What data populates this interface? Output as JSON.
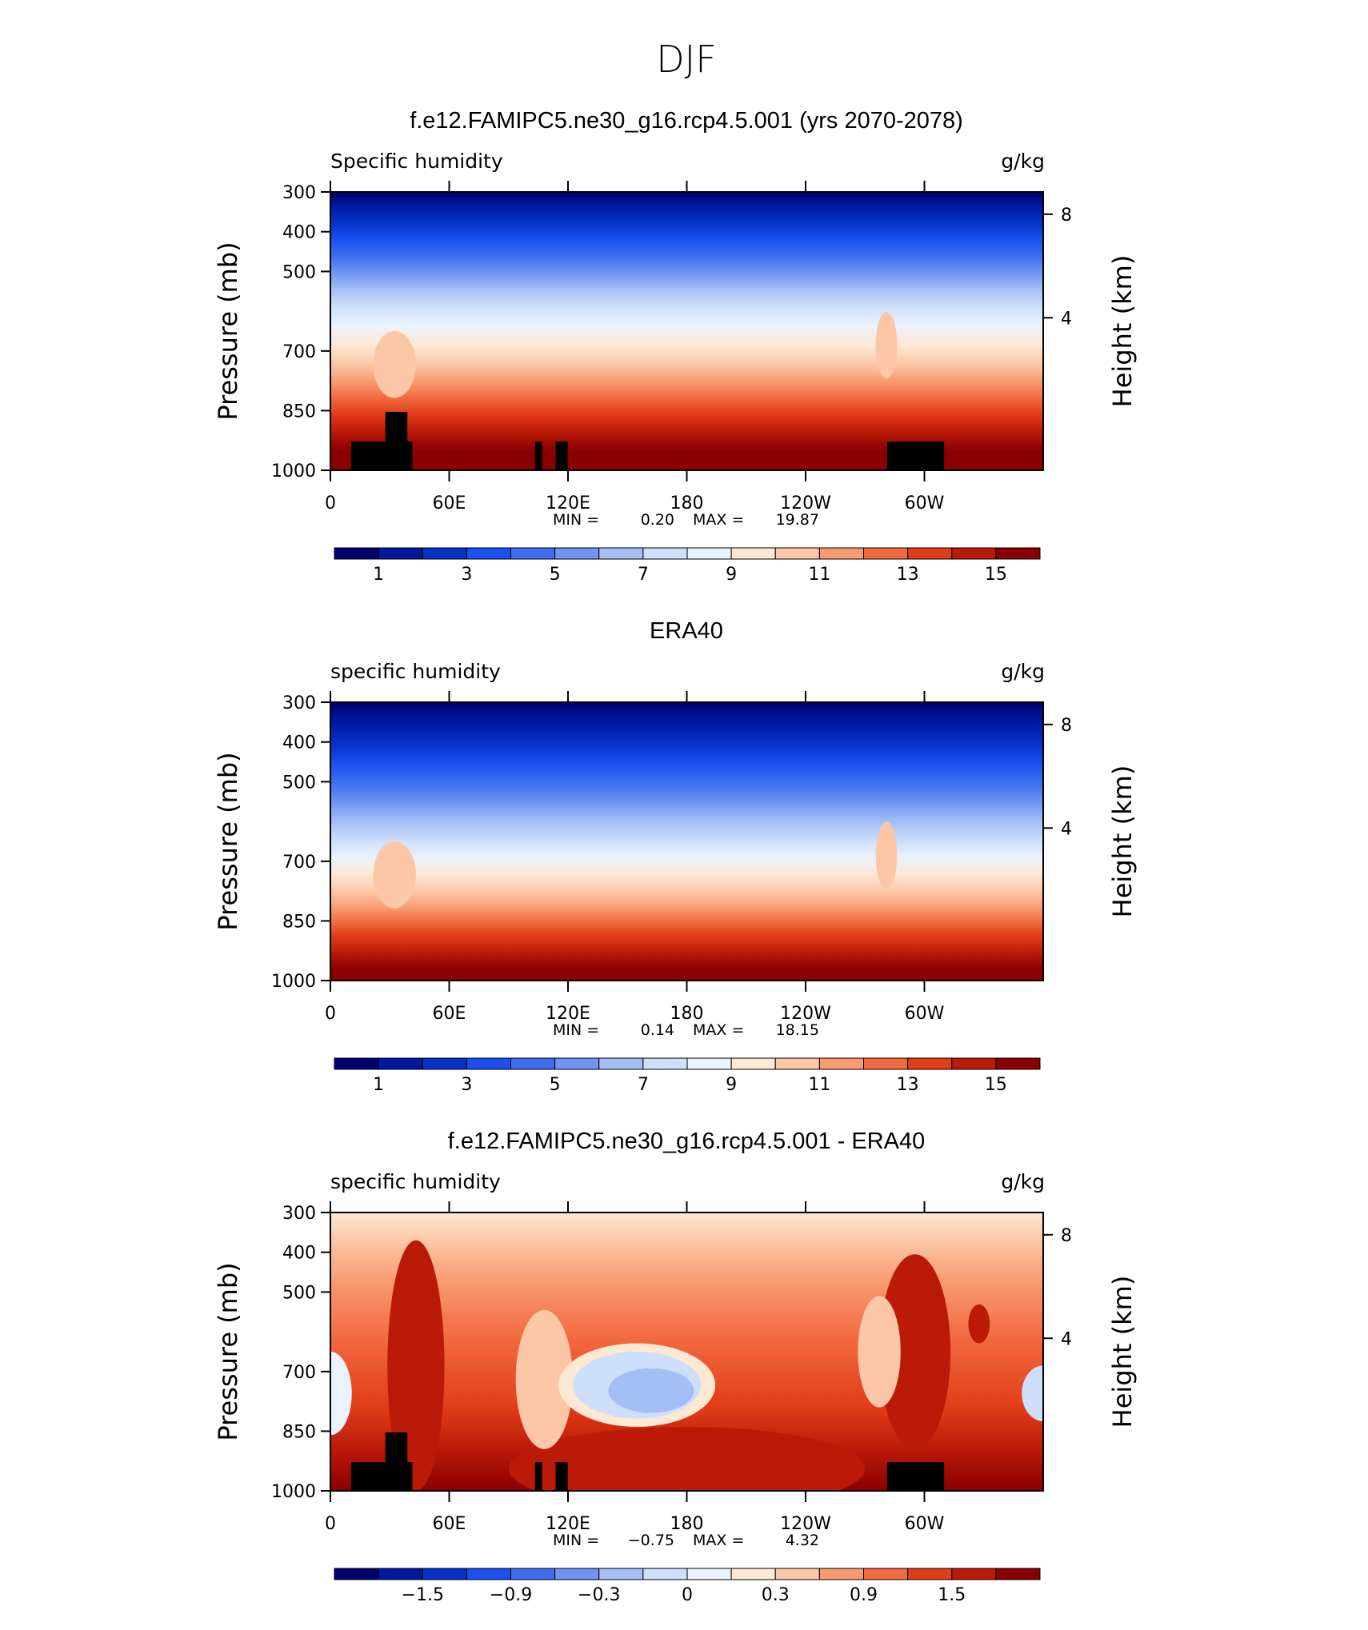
{
  "title": "DJF",
  "chart_data": [
    {
      "type": "contour",
      "title": "f.e12.FAMIPC5.ne30_g16.rcp4.5.001 (yrs 2070-2078)",
      "variable": "Specific humidity",
      "units": "g/kg",
      "ylabel": "Pressure (mb)",
      "y2label": "Height (km)",
      "xlim": [
        0,
        360
      ],
      "xticks": [
        0,
        {
          "value": 60,
          "label": "60E"
        },
        {
          "value": 120,
          "label": "120E"
        },
        180,
        {
          "value": 240,
          "label": "120W"
        },
        {
          "value": 300,
          "label": "60W"
        }
      ],
      "ylim": [
        300,
        1000
      ],
      "y_inverted": true,
      "yticks": [
        300,
        400,
        500,
        700,
        850,
        1000
      ],
      "y2ticks": [
        8,
        4
      ],
      "min_text": "MIN =",
      "min": {
        "value": 0.2,
        "label": "0.20"
      },
      "max_text": "MAX =",
      "max": {
        "value": 19.87,
        "label": "19.87"
      },
      "colors": [
        "#00006e",
        "#0018a0",
        "#0632c8",
        "#1a4ff0",
        "#3d6ef2",
        "#6e95f2",
        "#a3bff6",
        "#cddffb",
        "#eaf3fd",
        "#fde8d4",
        "#fcc7a6",
        "#f99a70",
        "#f26a40",
        "#e23c18",
        "#bb1a08",
        "#8a0000"
      ],
      "colorbar_labels": [
        "1",
        null,
        "3",
        null,
        "5",
        null,
        "7",
        null,
        "9",
        null,
        "11",
        null,
        "13",
        null,
        "15"
      ]
    },
    {
      "type": "contour",
      "title": "ERA40",
      "variable": "specific humidity",
      "units": "g/kg",
      "ylabel": "Pressure (mb)",
      "y2label": "Height (km)",
      "xlim": [
        0,
        360
      ],
      "xticks": [
        0,
        {
          "value": 60,
          "label": "60E"
        },
        {
          "value": 120,
          "label": "120E"
        },
        180,
        {
          "value": 240,
          "label": "120W"
        },
        {
          "value": 300,
          "label": "60W"
        }
      ],
      "ylim": [
        300,
        1000
      ],
      "y_inverted": true,
      "yticks": [
        300,
        400,
        500,
        700,
        850,
        1000
      ],
      "y2ticks": [
        8,
        4
      ],
      "min_text": "MIN =",
      "min": {
        "value": 0.14,
        "label": "0.14"
      },
      "max_text": "MAX =",
      "max": {
        "value": 18.15,
        "label": "18.15"
      },
      "colors": [
        "#00006e",
        "#0018a0",
        "#0632c8",
        "#1a4ff0",
        "#3d6ef2",
        "#6e95f2",
        "#a3bff6",
        "#cddffb",
        "#eaf3fd",
        "#fde8d4",
        "#fcc7a6",
        "#f99a70",
        "#f26a40",
        "#e23c18",
        "#bb1a08",
        "#8a0000"
      ],
      "colorbar_labels": [
        "1",
        null,
        "3",
        null,
        "5",
        null,
        "7",
        null,
        "9",
        null,
        "11",
        null,
        "13",
        null,
        "15"
      ]
    },
    {
      "type": "contour",
      "title": "f.e12.FAMIPC5.ne30_g16.rcp4.5.001 - ERA40",
      "variable": "specific humidity",
      "units": "g/kg",
      "ylabel": "Pressure (mb)",
      "y2label": "Height (km)",
      "xlim": [
        0,
        360
      ],
      "xticks": [
        0,
        {
          "value": 60,
          "label": "60E"
        },
        {
          "value": 120,
          "label": "120E"
        },
        180,
        {
          "value": 240,
          "label": "120W"
        },
        {
          "value": 300,
          "label": "60W"
        }
      ],
      "ylim": [
        300,
        1000
      ],
      "y_inverted": true,
      "yticks": [
        300,
        400,
        500,
        700,
        850,
        1000
      ],
      "y2ticks": [
        8,
        4
      ],
      "min_text": "MIN =",
      "min": {
        "value": -0.75,
        "label": "−0.75"
      },
      "max_text": "MAX =",
      "max": {
        "value": 4.32,
        "label": "4.32"
      },
      "colors": [
        "#00006e",
        "#0018a0",
        "#0632c8",
        "#1a4ff0",
        "#3d6ef2",
        "#6e95f2",
        "#a3bff6",
        "#cddffb",
        "#eaf3fd",
        "#fde8d4",
        "#fcc7a6",
        "#f99a70",
        "#f26a40",
        "#e23c18",
        "#bb1a08",
        "#8a0000"
      ],
      "colorbar_labels": [
        null,
        "−1.5",
        null,
        "−0.9",
        null,
        "−0.3",
        null,
        "0",
        null,
        "0.3",
        null,
        "0.9",
        null,
        "1.5",
        null
      ]
    }
  ]
}
